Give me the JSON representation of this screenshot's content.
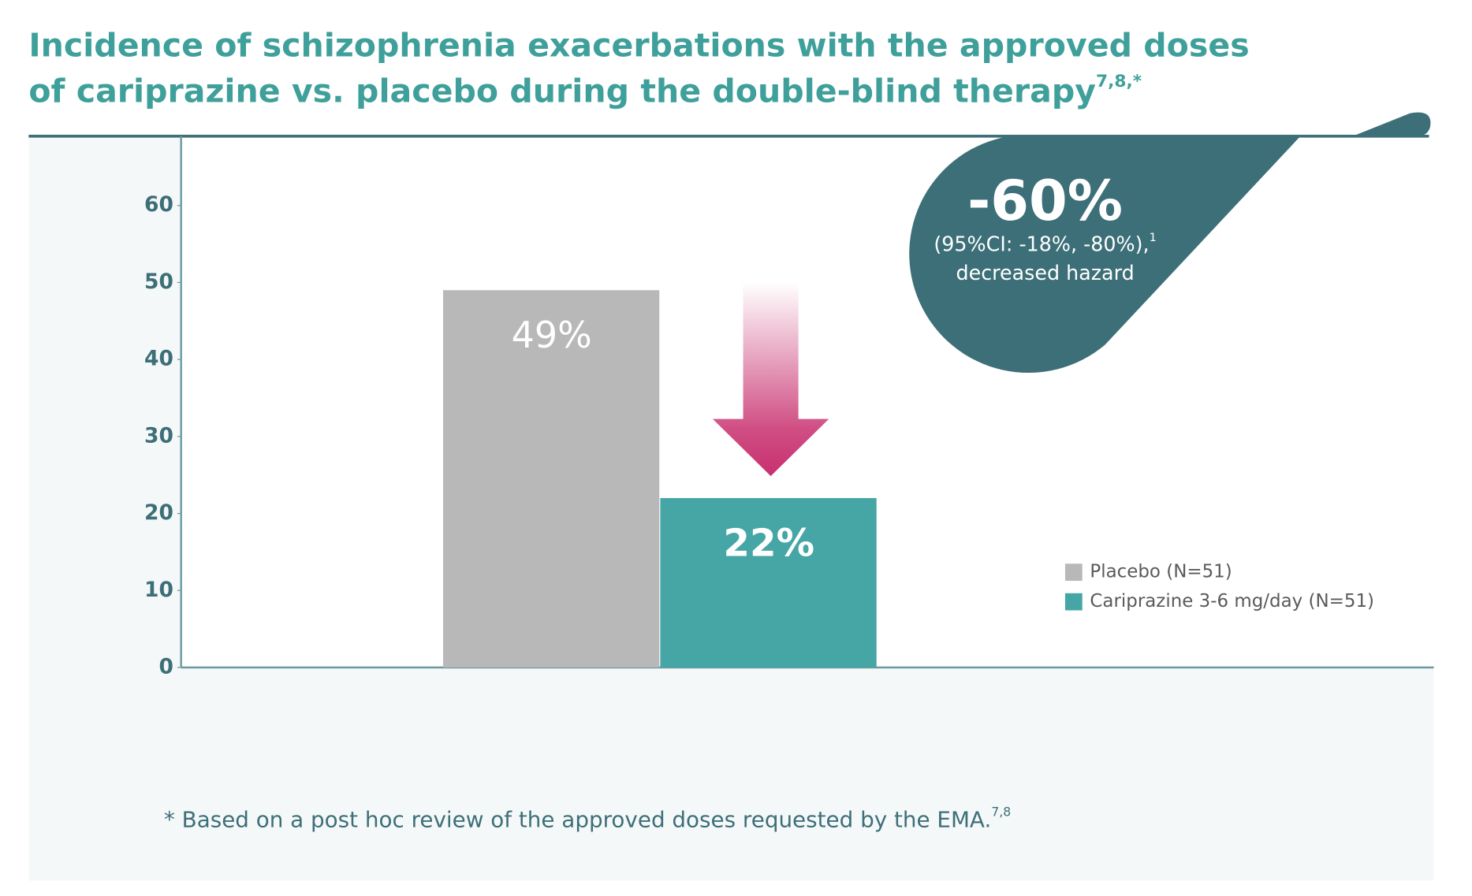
{
  "chart_data": {
    "type": "bar",
    "title": [
      "Incidence of schizophrenia exacerbations with the approved doses",
      "of cariprazine vs. placebo during the double-blind therapy"
    ],
    "title_superscript": "7,8,*",
    "categories": [
      null
    ],
    "series": [
      {
        "name": "Placebo (N=51)",
        "color": "#b8b8b8",
        "values": [
          49
        ],
        "value_labels": [
          "49%"
        ]
      },
      {
        "name": "Cariprazine 3-6 mg/day (N=51)",
        "color": "#46a5a5",
        "values": [
          22
        ],
        "value_labels": [
          "22%"
        ]
      }
    ],
    "ylim": [
      0,
      69
    ],
    "yticks": [
      0,
      10,
      20,
      30,
      40,
      50,
      60
    ],
    "grid": false,
    "annotation": {
      "text": "-60%",
      "detail": "(95%CI: -18%, -80%),",
      "detail_superscript": "1",
      "note": "decreased hazard"
    },
    "footnote": {
      "text": "* Based on a post hoc review of the approved doses requested by the EMA.",
      "superscript": "7,8"
    }
  }
}
